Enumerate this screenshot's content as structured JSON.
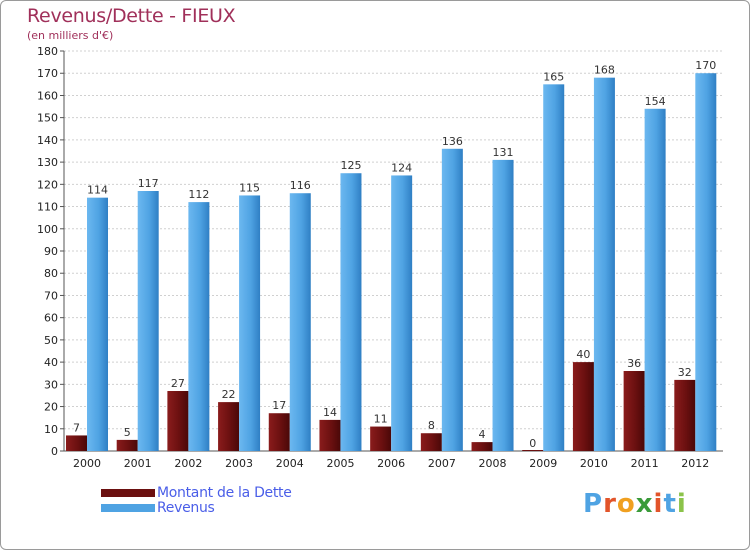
{
  "header": {
    "title": "Revenus/Dette - FIEUX",
    "subtitle": "(en milliers d'€)"
  },
  "colors": {
    "dette": "#6b1010",
    "revenus": "#4fa3e3",
    "title": "#a0305a",
    "legend_text": "#4a5ee8"
  },
  "chart_data": {
    "type": "bar",
    "title": "Revenus/Dette - FIEUX",
    "ylabel": "(en milliers d'€)",
    "xlabel": "",
    "ylim": [
      0,
      180
    ],
    "ytick_step": 10,
    "grid": true,
    "legend": "bottom-left",
    "categories": [
      "2000",
      "2001",
      "2002",
      "2003",
      "2004",
      "2005",
      "2006",
      "2007",
      "2008",
      "2009",
      "2010",
      "2011",
      "2012"
    ],
    "series": [
      {
        "name": "Montant de la Dette",
        "values": [
          7,
          5,
          27,
          22,
          17,
          14,
          11,
          8,
          4,
          0,
          40,
          36,
          32
        ]
      },
      {
        "name": "Revenus",
        "values": [
          114,
          117,
          112,
          115,
          116,
          125,
          124,
          136,
          131,
          165,
          168,
          154,
          170
        ]
      }
    ]
  },
  "legend": {
    "items": [
      {
        "label": "Montant de la Dette",
        "color": "#6b1010"
      },
      {
        "label": "Revenus",
        "color": "#4fa3e3"
      }
    ]
  },
  "logo": {
    "text": "Proxiti"
  }
}
